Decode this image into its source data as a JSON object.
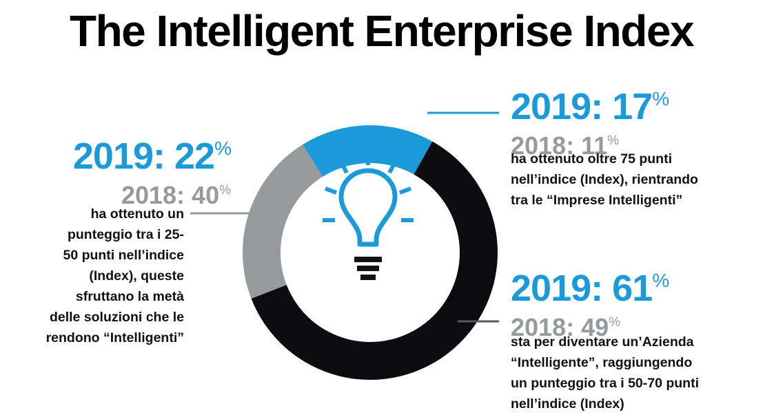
{
  "title": "The Intelligent Enterprise Index",
  "colors": {
    "blue": "#1a9ad8",
    "gray": "#98999b",
    "black": "#0c0c0e",
    "icon": "#1a9ad8"
  },
  "icon": "lightbulb-icon",
  "chart_data": {
    "type": "pie",
    "title": "The Intelligent Enterprise Index",
    "labels": [
      "2019: 17%",
      "2019: 61%",
      "2019: 22%"
    ],
    "values": [
      17,
      61,
      22
    ],
    "year": "2019",
    "previous_year": "2018",
    "series": [
      {
        "year_label": "2019: ",
        "value_label": "17",
        "pct": "%",
        "prev_label": "2018: 11",
        "prev_pct": "%",
        "value": 17,
        "previous": 11,
        "color": "#1a9ad8",
        "description": [
          "ha ottenuto oltre 75 punti",
          "nell’indice (Index), rientrando",
          "tra le “Imprese Intelligenti”"
        ]
      },
      {
        "year_label": "2019: ",
        "value_label": "61",
        "pct": "%",
        "prev_label": "2018: 49",
        "prev_pct": "%",
        "value": 61,
        "previous": 49,
        "color": "#0c0c0e",
        "description": [
          "sta per diventare un’Azienda",
          "“Intelligente”, raggiungendo",
          "un punteggio tra i 50-70 punti",
          "nell’indice (Index)"
        ]
      },
      {
        "year_label": "2019: ",
        "value_label": "22",
        "pct": "%",
        "prev_label": "2018: 40",
        "prev_pct": "%",
        "value": 22,
        "previous": 40,
        "color": "#98999b",
        "description": [
          "ha ottenuto un",
          "punteggio tra i 25-",
          "50 punti nell’indice",
          "(Index), queste",
          "sfruttano la metà",
          "delle soluzioni che le",
          "rendono “Intelligenti”"
        ]
      }
    ]
  }
}
